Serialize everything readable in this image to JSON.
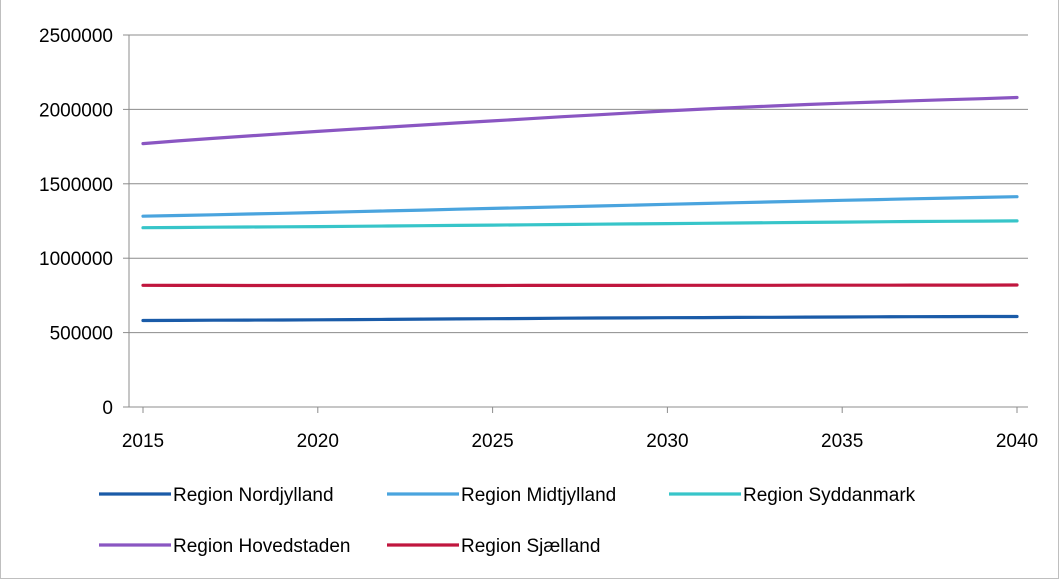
{
  "chart_data": {
    "type": "line",
    "title": "",
    "xlabel": "",
    "ylabel": "",
    "x": [
      2015,
      2016,
      2017,
      2018,
      2019,
      2020,
      2021,
      2022,
      2023,
      2024,
      2025,
      2026,
      2027,
      2028,
      2029,
      2030,
      2031,
      2032,
      2033,
      2034,
      2035,
      2036,
      2037,
      2038,
      2039,
      2040
    ],
    "xlim": [
      2015,
      2040
    ],
    "ylim": [
      0,
      2500000
    ],
    "x_ticks": [
      "2015",
      "2020",
      "2025",
      "2030",
      "2035",
      "2040"
    ],
    "y_ticks": [
      "0",
      "500000",
      "1000000",
      "1500000",
      "2000000",
      "2500000"
    ],
    "grid": true,
    "legend_position": "bottom",
    "series": [
      {
        "name": "Region Nordjylland",
        "color": "#1a5ba8",
        "values": [
          581000,
          582000,
          583000,
          584000,
          585000,
          586000,
          587500,
          589000,
          590500,
          592000,
          593500,
          595000,
          596500,
          598000,
          599000,
          600000,
          601000,
          602000,
          603000,
          604000,
          605000,
          606000,
          607000,
          607500,
          608000,
          608500
        ]
      },
      {
        "name": "Region Midtjylland",
        "color": "#4aa4de",
        "values": [
          1282000,
          1287000,
          1292000,
          1297000,
          1302000,
          1307000,
          1312500,
          1318000,
          1323500,
          1329000,
          1334500,
          1340000,
          1345500,
          1351000,
          1356500,
          1362000,
          1367500,
          1373000,
          1378500,
          1384000,
          1389000,
          1394000,
          1399000,
          1404000,
          1408500,
          1413000
        ]
      },
      {
        "name": "Region Syddanmark",
        "color": "#37c5c9",
        "values": [
          1205000,
          1206500,
          1208000,
          1209500,
          1211000,
          1212500,
          1214500,
          1216500,
          1218500,
          1220500,
          1222500,
          1224500,
          1226500,
          1228500,
          1230500,
          1232500,
          1234500,
          1236500,
          1238500,
          1240500,
          1242500,
          1244500,
          1246500,
          1248000,
          1249500,
          1251000
        ]
      },
      {
        "name": "Region Hovedstaden",
        "color": "#8a56c2",
        "values": [
          1770000,
          1788000,
          1805000,
          1821000,
          1837000,
          1852000,
          1867000,
          1881000,
          1895000,
          1909000,
          1923000,
          1937000,
          1951000,
          1964000,
          1977000,
          1990000,
          2002000,
          2013000,
          2023000,
          2033000,
          2042000,
          2050000,
          2058000,
          2065000,
          2072000,
          2080000
        ]
      },
      {
        "name": "Region Sjælland",
        "color": "#c0163e",
        "values": [
          818000,
          817500,
          817000,
          816800,
          816600,
          816500,
          816500,
          816500,
          816600,
          816700,
          816800,
          816900,
          817000,
          817200,
          817400,
          817600,
          817800,
          818000,
          818200,
          818400,
          818600,
          818800,
          819000,
          819200,
          819400,
          819600
        ]
      }
    ]
  }
}
